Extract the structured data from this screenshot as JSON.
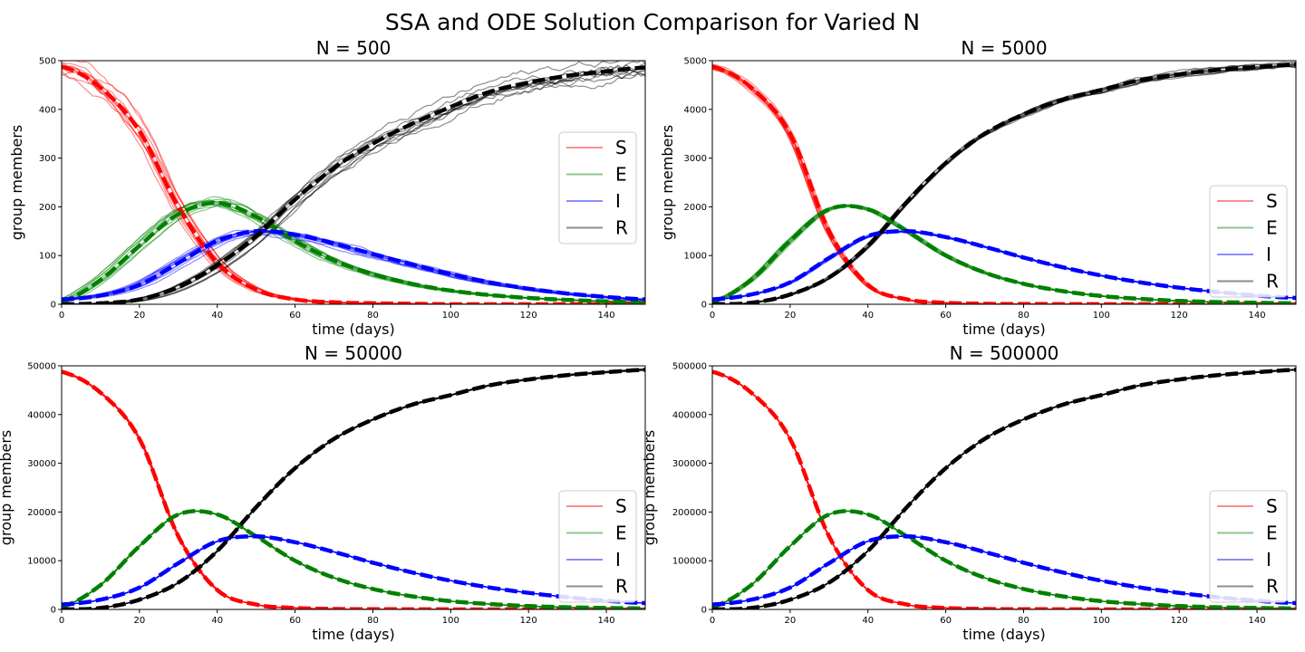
{
  "figure": {
    "suptitle": "SSA and ODE Solution Comparison for Varied N"
  },
  "series_colors": {
    "S": "#ff0000",
    "E": "#008000",
    "I": "#0000ff",
    "R": "#000000"
  },
  "chart_data": [
    {
      "type": "line",
      "title": "N = 500",
      "xlabel": "time (days)",
      "ylabel": "group members",
      "xlim": [
        0,
        150
      ],
      "ylim": [
        0,
        500
      ],
      "xticks": [
        0,
        20,
        40,
        60,
        80,
        100,
        120,
        140
      ],
      "yticks": [
        0,
        100,
        200,
        300,
        400,
        500
      ],
      "legend": [
        "S",
        "E",
        "I",
        "R"
      ],
      "legend_position": "center-right",
      "ssa_runs": 10,
      "x": [
        0,
        10,
        20,
        30,
        40,
        50,
        60,
        70,
        80,
        90,
        100,
        110,
        120,
        130,
        140,
        150
      ],
      "series": [
        {
          "name": "S",
          "values": [
            488,
            445,
            355,
            200,
            85,
            30,
            10,
            4,
            2,
            1,
            0,
            0,
            0,
            0,
            0,
            0
          ]
        },
        {
          "name": "E",
          "values": [
            5,
            50,
            120,
            185,
            208,
            180,
            130,
            90,
            62,
            42,
            28,
            19,
            13,
            9,
            6,
            4
          ]
        },
        {
          "name": "I",
          "values": [
            10,
            18,
            40,
            85,
            130,
            150,
            143,
            125,
            103,
            82,
            62,
            45,
            32,
            22,
            15,
            10
          ]
        },
        {
          "name": "R",
          "values": [
            0,
            2,
            10,
            35,
            80,
            140,
            215,
            280,
            330,
            370,
            405,
            436,
            455,
            469,
            478,
            486
          ]
        }
      ]
    },
    {
      "type": "line",
      "title": "N = 5000",
      "xlabel": "time (days)",
      "ylabel": "group members",
      "xlim": [
        0,
        150
      ],
      "ylim": [
        0,
        5000
      ],
      "xticks": [
        0,
        20,
        40,
        60,
        80,
        100,
        120,
        140
      ],
      "yticks": [
        0,
        1000,
        2000,
        3000,
        4000,
        5000
      ],
      "legend": [
        "S",
        "E",
        "I",
        "R"
      ],
      "legend_position": "lower-right",
      "ssa_runs": 10,
      "x": [
        0,
        10,
        20,
        30,
        40,
        50,
        60,
        70,
        80,
        90,
        100,
        110,
        120,
        130,
        140,
        150
      ],
      "series": [
        {
          "name": "S",
          "values": [
            4880,
            4450,
            3500,
            1500,
            400,
            100,
            30,
            10,
            5,
            2,
            1,
            0,
            0,
            0,
            0,
            0
          ]
        },
        {
          "name": "E",
          "values": [
            50,
            500,
            1300,
            1950,
            1950,
            1500,
            1000,
            650,
            420,
            270,
            170,
            110,
            70,
            45,
            30,
            20
          ]
        },
        {
          "name": "I",
          "values": [
            100,
            200,
            450,
            950,
            1400,
            1500,
            1380,
            1180,
            960,
            760,
            590,
            450,
            340,
            250,
            180,
            130
          ]
        },
        {
          "name": "R",
          "values": [
            0,
            30,
            200,
            550,
            1200,
            2100,
            2900,
            3500,
            3900,
            4200,
            4400,
            4600,
            4720,
            4810,
            4870,
            4920
          ]
        }
      ]
    },
    {
      "type": "line",
      "title": "N = 50000",
      "xlabel": "time (days)",
      "ylabel": "group members",
      "xlim": [
        0,
        150
      ],
      "ylim": [
        0,
        50000
      ],
      "xticks": [
        0,
        20,
        40,
        60,
        80,
        100,
        120,
        140
      ],
      "yticks": [
        0,
        10000,
        20000,
        30000,
        40000,
        50000
      ],
      "legend": [
        "S",
        "E",
        "I",
        "R"
      ],
      "legend_position": "lower-right",
      "ssa_runs": 10,
      "x": [
        0,
        10,
        20,
        30,
        40,
        50,
        60,
        70,
        80,
        90,
        100,
        110,
        120,
        130,
        140,
        150
      ],
      "series": [
        {
          "name": "S",
          "values": [
            48800,
            44500,
            35000,
            15000,
            4000,
            1000,
            300,
            100,
            50,
            20,
            10,
            0,
            0,
            0,
            0,
            0
          ]
        },
        {
          "name": "E",
          "values": [
            500,
            5000,
            13000,
            19500,
            19500,
            15000,
            10000,
            6500,
            4200,
            2700,
            1700,
            1100,
            700,
            450,
            300,
            200
          ]
        },
        {
          "name": "I",
          "values": [
            1000,
            2000,
            4500,
            9500,
            14000,
            15000,
            13800,
            11800,
            9600,
            7600,
            5900,
            4500,
            3400,
            2500,
            1800,
            1300
          ]
        },
        {
          "name": "R",
          "values": [
            0,
            300,
            2000,
            5500,
            12000,
            21000,
            29000,
            35000,
            39000,
            42000,
            44000,
            46000,
            47200,
            48100,
            48700,
            49200
          ]
        }
      ]
    },
    {
      "type": "line",
      "title": "N = 500000",
      "xlabel": "time (days)",
      "ylabel": "group members",
      "xlim": [
        0,
        150
      ],
      "ylim": [
        0,
        500000
      ],
      "xticks": [
        0,
        20,
        40,
        60,
        80,
        100,
        120,
        140
      ],
      "yticks": [
        0,
        100000,
        200000,
        300000,
        400000,
        500000
      ],
      "legend": [
        "S",
        "E",
        "I",
        "R"
      ],
      "legend_position": "lower-right",
      "ssa_runs": 10,
      "x": [
        0,
        10,
        20,
        30,
        40,
        50,
        60,
        70,
        80,
        90,
        100,
        110,
        120,
        130,
        140,
        150
      ],
      "series": [
        {
          "name": "S",
          "values": [
            488000,
            445000,
            350000,
            150000,
            40000,
            10000,
            3000,
            1000,
            500,
            200,
            100,
            0,
            0,
            0,
            0,
            0
          ]
        },
        {
          "name": "E",
          "values": [
            5000,
            50000,
            130000,
            195000,
            195000,
            150000,
            100000,
            65000,
            42000,
            27000,
            17000,
            11000,
            7000,
            4500,
            3000,
            2000
          ]
        },
        {
          "name": "I",
          "values": [
            10000,
            20000,
            45000,
            95000,
            140000,
            150000,
            138000,
            118000,
            96000,
            76000,
            59000,
            45000,
            34000,
            25000,
            18000,
            13000
          ]
        },
        {
          "name": "R",
          "values": [
            0,
            3000,
            20000,
            55000,
            120000,
            210000,
            290000,
            350000,
            390000,
            420000,
            440000,
            460000,
            472000,
            481000,
            487000,
            492000
          ]
        }
      ]
    }
  ]
}
